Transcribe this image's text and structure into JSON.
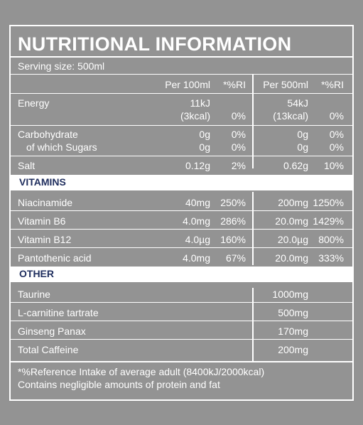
{
  "title": "NUTRITIONAL INFORMATION",
  "serving": "Serving size: 500ml",
  "headers": {
    "per100": "Per 100ml",
    "ri100": "*%RI",
    "per500": "Per 500ml",
    "ri500": "*%RI"
  },
  "energy": {
    "label": "Energy",
    "per100_line1": "11kJ",
    "per100_line2": "(3kcal)",
    "ri100": "0%",
    "per500_line1": "54kJ",
    "per500_line2": "(13kcal)",
    "ri500": "0%"
  },
  "carbs": {
    "label": "Carbohydrate",
    "per100": "0g",
    "ri100": "0%",
    "per500": "0g",
    "ri500": "0%",
    "sugars_label": "of which Sugars",
    "sugars_per100": "0g",
    "sugars_ri100": "0%",
    "sugars_per500": "0g",
    "sugars_ri500": "0%"
  },
  "salt": {
    "label": "Salt",
    "per100": "0.12g",
    "ri100": "2%",
    "per500": "0.62g",
    "ri500": "10%"
  },
  "vitamins_heading": "VITAMINS",
  "vitamins": [
    {
      "label": "Niacinamide",
      "per100": "40mg",
      "ri100": "250%",
      "per500": "200mg",
      "ri500": "1250%"
    },
    {
      "label": "Vitamin B6",
      "per100": "4.0mg",
      "ri100": "286%",
      "per500": "20.0mg",
      "ri500": "1429%"
    },
    {
      "label": "Vitamin B12",
      "per100": "4.0µg",
      "ri100": "160%",
      "per500": "20.0µg",
      "ri500": "800%"
    },
    {
      "label": "Pantothenic acid",
      "per100": "4.0mg",
      "ri100": "67%",
      "per500": "20.0mg",
      "ri500": "333%"
    }
  ],
  "other_heading": "OTHER",
  "other": [
    {
      "label": "Taurine",
      "per500": "1000mg"
    },
    {
      "label": "L-carnitine tartrate",
      "per500": "500mg"
    },
    {
      "label": "Ginseng Panax",
      "per500": "170mg"
    },
    {
      "label": "Total Caffeine",
      "per500": "200mg"
    }
  ],
  "footnote1": "*%Reference Intake of average adult (8400kJ/2000kcal)",
  "footnote2": "Contains negligible amounts of protein and fat"
}
